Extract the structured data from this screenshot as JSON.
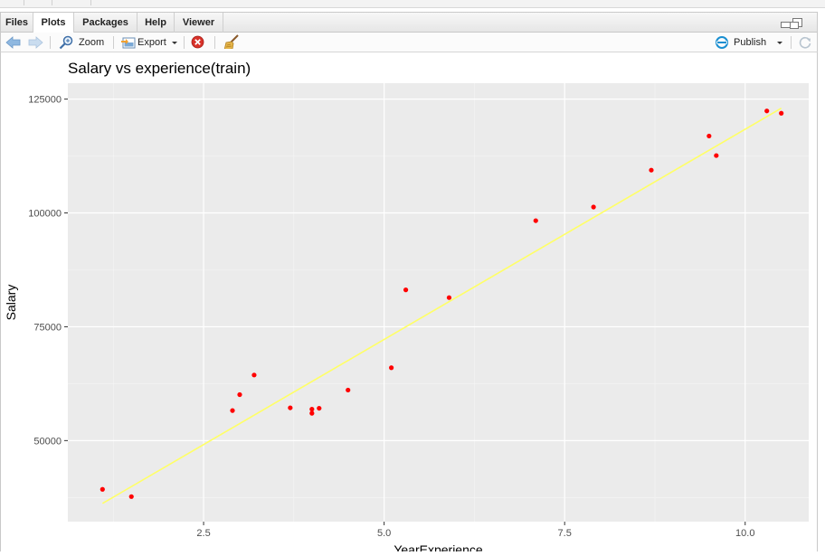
{
  "tabs": [
    {
      "label": "Files",
      "active": false
    },
    {
      "label": "Plots",
      "active": true
    },
    {
      "label": "Packages",
      "active": false
    },
    {
      "label": "Help",
      "active": false
    },
    {
      "label": "Viewer",
      "active": false
    }
  ],
  "toolbar": {
    "zoom_label": "Zoom",
    "export_label": "Export",
    "publish_label": "Publish",
    "icons": [
      "back-arrow-icon",
      "forward-arrow-icon",
      "zoom-icon",
      "export-icon",
      "remove-plot-icon",
      "broom-icon",
      "publish-icon",
      "refresh-icon"
    ]
  },
  "colors": {
    "panel_bg": "#ebebeb",
    "point": "#ff0000",
    "line": "#ffff66",
    "publish_accent": "#1a8fd1"
  },
  "chart_data": {
    "type": "scatter",
    "title": "Salary vs experience(train)",
    "xlabel": "YearExperience",
    "ylabel": "Salary",
    "xlim": [
      0.62,
      10.88
    ],
    "ylim": [
      32200,
      128500
    ],
    "x_ticks": [
      {
        "value": 2.5,
        "label": "2.5"
      },
      {
        "value": 5.0,
        "label": "5.0"
      },
      {
        "value": 7.5,
        "label": "7.5"
      },
      {
        "value": 10.0,
        "label": "10.0"
      }
    ],
    "y_ticks": [
      {
        "value": 50000,
        "label": "50000"
      },
      {
        "value": 75000,
        "label": "75000"
      },
      {
        "value": 100000,
        "label": "100000"
      },
      {
        "value": 125000,
        "label": "125000"
      }
    ],
    "grid": true,
    "points": [
      {
        "x": 1.1,
        "y": 39300
      },
      {
        "x": 1.5,
        "y": 37700
      },
      {
        "x": 2.9,
        "y": 56600
      },
      {
        "x": 3.0,
        "y": 60100
      },
      {
        "x": 3.2,
        "y": 64400
      },
      {
        "x": 3.7,
        "y": 57200
      },
      {
        "x": 4.0,
        "y": 56000
      },
      {
        "x": 4.0,
        "y": 56900
      },
      {
        "x": 4.1,
        "y": 57100
      },
      {
        "x": 4.5,
        "y": 61100
      },
      {
        "x": 5.1,
        "y": 66000
      },
      {
        "x": 5.3,
        "y": 83100
      },
      {
        "x": 5.9,
        "y": 81400
      },
      {
        "x": 7.1,
        "y": 98300
      },
      {
        "x": 7.9,
        "y": 101300
      },
      {
        "x": 8.7,
        "y": 109400
      },
      {
        "x": 9.5,
        "y": 116900
      },
      {
        "x": 9.6,
        "y": 112600
      },
      {
        "x": 10.3,
        "y": 122400
      },
      {
        "x": 10.5,
        "y": 121900
      }
    ],
    "fit_line": [
      {
        "x": 1.1,
        "y": 36200
      },
      {
        "x": 10.5,
        "y": 123000
      }
    ]
  }
}
